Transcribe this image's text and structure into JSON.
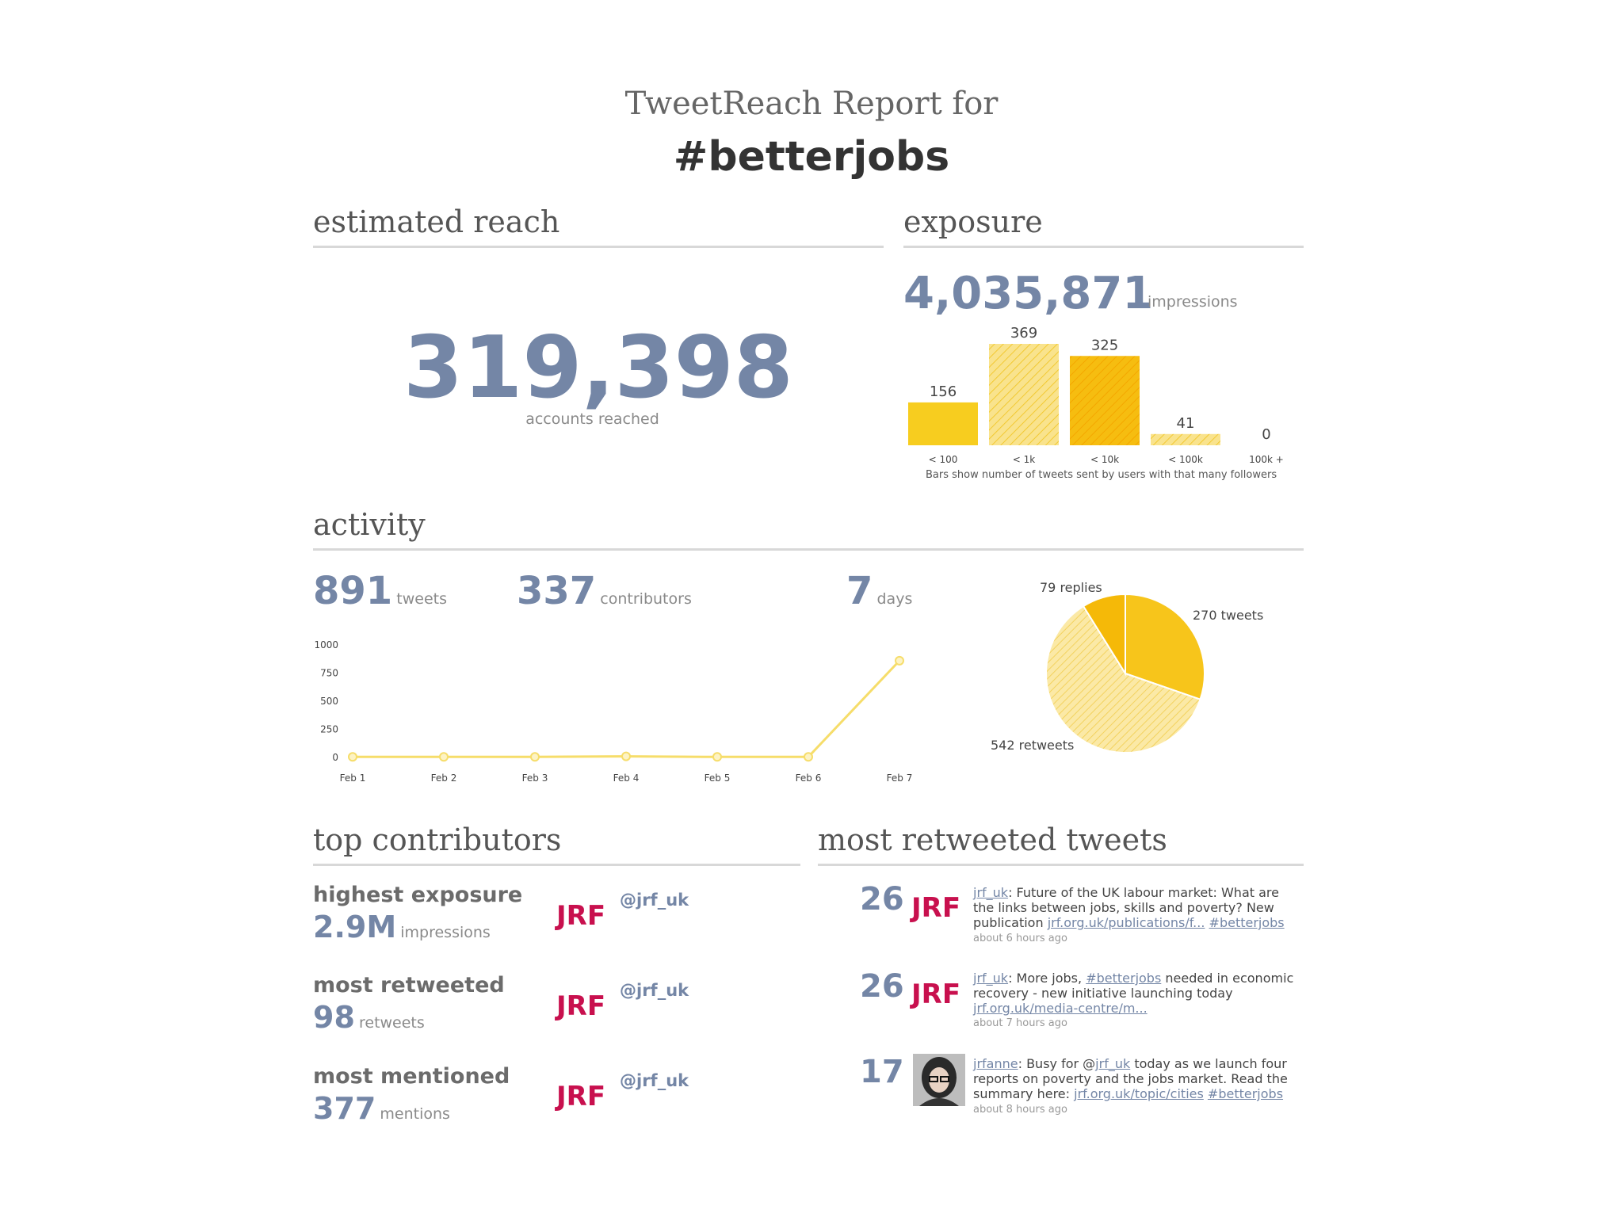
{
  "header": {
    "subtitle": "TweetReach Report for",
    "hashtag": "#betterjobs"
  },
  "reach": {
    "heading": "estimated reach",
    "value": "319,398",
    "label": "accounts reached"
  },
  "exposure": {
    "heading": "exposure",
    "value": "4,035,871",
    "unit": "impressions",
    "note": "Bars show number of tweets sent by users with that many followers"
  },
  "activity": {
    "heading": "activity",
    "tweets": {
      "value": "891",
      "unit": "tweets"
    },
    "contributors": {
      "value": "337",
      "unit": "contributors"
    },
    "days": {
      "value": "7",
      "unit": "days"
    }
  },
  "contributors": {
    "heading": "top contributors",
    "items": [
      {
        "label": "highest exposure",
        "value": "2.9M",
        "unit": "impressions",
        "logo": "JRF",
        "handle": "@jrf_uk"
      },
      {
        "label": "most retweeted",
        "value": "98",
        "unit": "retweets",
        "logo": "JRF",
        "handle": "@jrf_uk"
      },
      {
        "label": "most mentioned",
        "value": "377",
        "unit": "mentions",
        "logo": "JRF",
        "handle": "@jrf_uk"
      }
    ]
  },
  "retweeted": {
    "heading": "most retweeted tweets",
    "items": [
      {
        "count": "26",
        "logo": "JRF",
        "user": "jrf_uk",
        "text1": ": Future of the UK labour market: What are the links between jobs, skills and poverty? New publication ",
        "link1": "jrf.org.uk/publications/f...",
        "link2": "#betterjobs",
        "time": "about 6 hours ago"
      },
      {
        "count": "26",
        "logo": "JRF",
        "user": "jrf_uk",
        "text1": ": More jobs, ",
        "link1": "#betterjobs",
        "text2": " needed in economic recovery - new initiative launching today ",
        "link2": "jrf.org.uk/media-centre/m...",
        "time": "about 7 hours ago"
      },
      {
        "count": "17",
        "logo": "avatar",
        "user": "jrfanne",
        "text1": ": Busy for @",
        "link1": "jrf_uk",
        "text2": " today as we launch four reports on poverty and the jobs market. Read the summary here: ",
        "link2": "jrf.org.uk/topic/cities",
        "link3": "#betterjobs",
        "time": "about 8 hours ago"
      }
    ]
  },
  "chart_data": [
    {
      "type": "bar",
      "categories": [
        "< 100",
        "< 1k",
        "< 10k",
        "< 100k",
        "100k +"
      ],
      "values": [
        156,
        369,
        325,
        41,
        0
      ],
      "colors": [
        "#f7cd1f",
        "#f8dd6a",
        "#f6b90c",
        "#f5c518",
        "#f5c518"
      ]
    },
    {
      "type": "line",
      "x": [
        "Feb 1",
        "Feb 2",
        "Feb 3",
        "Feb 4",
        "Feb 5",
        "Feb 6",
        "Feb 7"
      ],
      "y": [
        5,
        5,
        5,
        10,
        5,
        5,
        860
      ],
      "yticks": [
        0,
        250,
        500,
        750,
        1000
      ],
      "ylim": [
        0,
        1000
      ],
      "color": "#f6dd6a"
    },
    {
      "type": "pie",
      "labels": [
        "270 tweets",
        "542 retweets",
        "79 replies"
      ],
      "values": [
        270,
        542,
        79
      ],
      "colors": [
        "#f7c51b",
        "#f8df85",
        "#f5b908"
      ]
    }
  ]
}
